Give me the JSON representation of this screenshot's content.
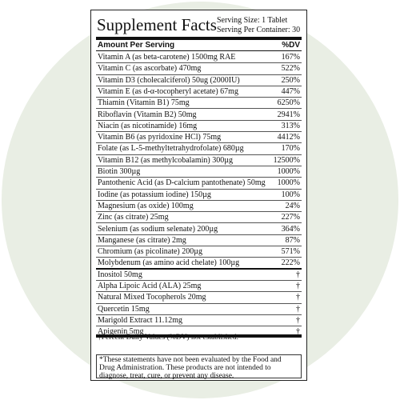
{
  "header": {
    "title": "Supplement Facts",
    "serving_size": "Serving Size: 1 Tablet",
    "servings_per_container": "Serving Per Container: 30"
  },
  "table": {
    "columns": [
      "Amount Per Serving",
      "%DV"
    ],
    "rows": [
      [
        "Vitamin A (as beta-carotene) 1500mg RAE",
        "167%"
      ],
      [
        "Vitamin C (as ascorbate) 470mg",
        "522%"
      ],
      [
        "Vitamin D3 (cholecalciferol) 50ug (2000IU)",
        "250%"
      ],
      [
        "Vitamin E (as d-α-tocopheryl acetate) 67mg",
        "447%"
      ],
      [
        "Thiamin (Vitamin B1) 75mg",
        "6250%"
      ],
      [
        "Riboflavin (Vitamin B2) 50mg",
        "2941%"
      ],
      [
        "Niacin (as nicotinamide) 16mg",
        "313%"
      ],
      [
        "Vitamin B6 (as pyridoxine HCl) 75mg",
        "4412%"
      ],
      [
        "Folate (as L-5-methyltetrahydrofolate) 680µg",
        "170%"
      ],
      [
        "Vitamin B12 (as methylcobalamin) 300µg",
        "12500%"
      ],
      [
        "Biotin 300µg",
        "1000%"
      ],
      [
        "Pantothenic Acid (as D-calcium pantothenate) 50mg",
        "1000%"
      ],
      [
        "Iodine (as potassium iodine) 150µg",
        "100%"
      ],
      [
        "Magnesium (as oxide) 100mg",
        "24%"
      ],
      [
        "Zinc (as citrate) 25mg",
        "227%"
      ],
      [
        "Selenium (as sodium selenate) 200µg",
        "364%"
      ],
      [
        "Manganese (as citrate) 2mg",
        "87%"
      ],
      [
        "Chromium (as picolinate) 200µg",
        "571%"
      ],
      [
        "Molybdenum (as amino acid chelate) 100µg",
        "222%"
      ]
    ],
    "other_rows": [
      [
        "Inositol 50mg",
        "†"
      ],
      [
        "Alpha Lipoic Acid (ALA) 25mg",
        "†"
      ],
      [
        "Natural Mixed Tocopherols 20mg",
        "†"
      ],
      [
        "Quercetin 15mg",
        "†"
      ],
      [
        "Marigold Extract 11.12mg",
        "†"
      ],
      [
        "Apigenin 5mg",
        "†"
      ]
    ]
  },
  "footnote": "†Percent Daily Values (%DV) not established.",
  "disclaimer": "*These statements have not been evaluated by the Food and Drug Administration. These products are not intended to diagnose, treat, cure, or prevent any disease."
}
